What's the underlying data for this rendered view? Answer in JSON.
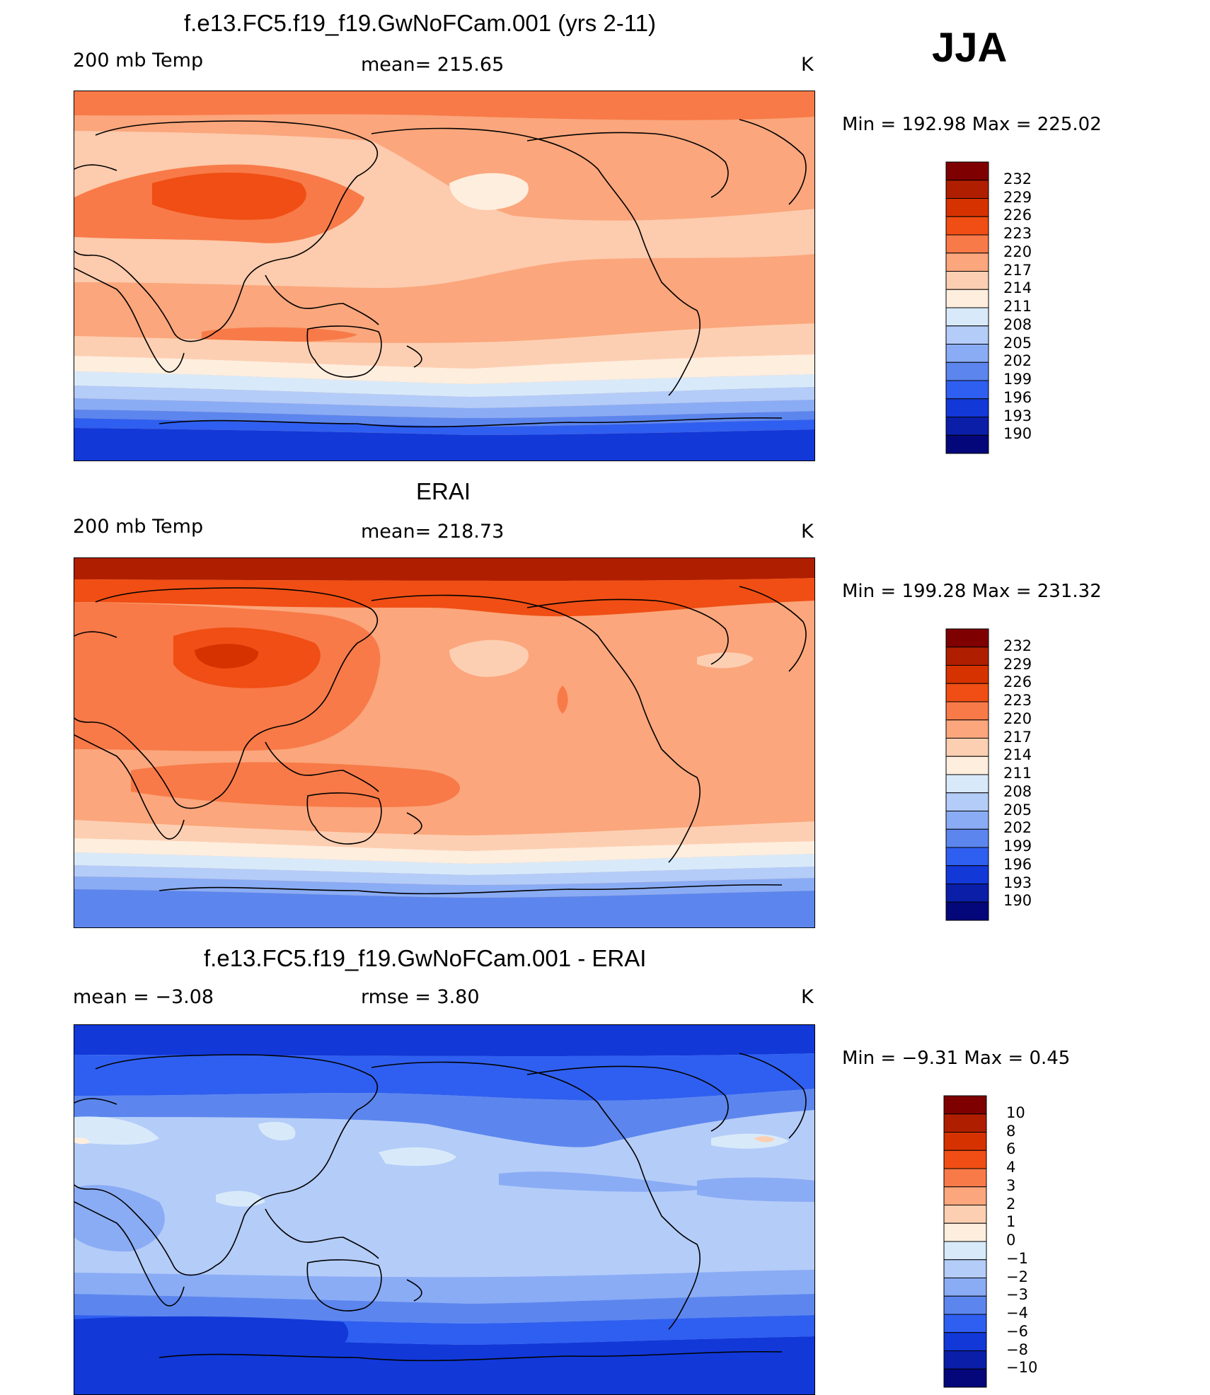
{
  "season": "JJA",
  "panels": [
    {
      "title": "f.e13.FC5.f19_f19.GwNoFCam.001 (yrs 2-11)",
      "left_label": "200 mb Temp",
      "center_label": "mean= 215.65",
      "units": "K",
      "minmax": "Min = 192.98 Max = 225.02",
      "colorbar_ticks": [
        "232",
        "229",
        "226",
        "223",
        "220",
        "217",
        "214",
        "211",
        "208",
        "205",
        "202",
        "199",
        "196",
        "193",
        "190"
      ]
    },
    {
      "title": "ERAI",
      "left_label": "200 mb Temp",
      "center_label": "mean= 218.73",
      "units": "K",
      "minmax": "Min = 199.28 Max = 231.32",
      "colorbar_ticks": [
        "232",
        "229",
        "226",
        "223",
        "220",
        "217",
        "214",
        "211",
        "208",
        "205",
        "202",
        "199",
        "196",
        "193",
        "190"
      ]
    },
    {
      "title": "f.e13.FC5.f19_f19.GwNoFCam.001 - ERAI",
      "left_label": "mean =   −3.08",
      "center_label": "rmse =    3.80",
      "units": "K",
      "minmax": "Min =  −9.31 Max =   0.45",
      "colorbar_ticks": [
        "10",
        "8",
        "6",
        "4",
        "3",
        "2",
        "1",
        "0",
        "−1",
        "−2",
        "−3",
        "−4",
        "−6",
        "−8",
        "−10"
      ]
    }
  ],
  "colors": {
    "temp_scale": [
      "#7f0000",
      "#b01e00",
      "#d63200",
      "#f04e14",
      "#f87a48",
      "#fba67c",
      "#fdcfb2",
      "#feeede",
      "#d8eafa",
      "#b4ccf8",
      "#8aacf5",
      "#5c86ee",
      "#2f5ff0",
      "#1238d8",
      "#0a1ea8",
      "#03077a"
    ],
    "diff_scale": [
      "#7f0000",
      "#b01e00",
      "#d63200",
      "#f04e14",
      "#f87a48",
      "#fba67c",
      "#fdcfb2",
      "#feeede",
      "#d8eafa",
      "#b4ccf8",
      "#8aacf5",
      "#5c86ee",
      "#2f5ff0",
      "#1238d8",
      "#0a1ea8",
      "#03077a"
    ]
  }
}
